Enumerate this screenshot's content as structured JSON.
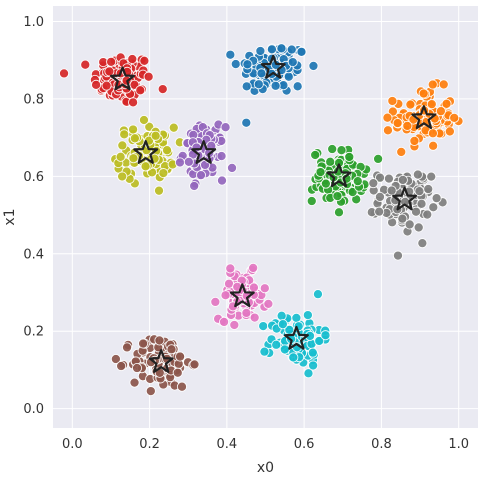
{
  "chart_data": {
    "type": "scatter",
    "title": "",
    "xlabel": "x0",
    "ylabel": "x1",
    "xlim": [
      -0.05,
      1.05
    ],
    "ylim": [
      -0.05,
      1.04
    ],
    "xticks": [
      "0.0",
      "0.2",
      "0.4",
      "0.6",
      "0.8",
      "1.0"
    ],
    "yticks": [
      "0.0",
      "0.2",
      "0.4",
      "0.6",
      "0.8",
      "1.0"
    ],
    "grid": true,
    "background": "#eaeaf2",
    "grid_color": "#ffffff",
    "point_size": "small circles with white edge",
    "points_per_cluster_approx": 100,
    "clusters": [
      {
        "center": [
          0.13,
          0.85
        ],
        "spread": [
          0.05,
          0.045
        ],
        "color": "#d62728"
      },
      {
        "center": [
          0.52,
          0.88
        ],
        "spread": [
          0.06,
          0.045
        ],
        "color": "#1f77b4"
      },
      {
        "center": [
          0.91,
          0.75
        ],
        "spread": [
          0.05,
          0.05
        ],
        "color": "#ff7f0e"
      },
      {
        "center": [
          0.19,
          0.66
        ],
        "spread": [
          0.05,
          0.045
        ],
        "color": "#bcbd22"
      },
      {
        "center": [
          0.34,
          0.66
        ],
        "spread": [
          0.035,
          0.045
        ],
        "color": "#9467bd"
      },
      {
        "center": [
          0.69,
          0.6
        ],
        "spread": [
          0.045,
          0.045
        ],
        "color": "#2ca02c"
      },
      {
        "center": [
          0.86,
          0.54
        ],
        "spread": [
          0.045,
          0.05
        ],
        "color": "#7f7f7f"
      },
      {
        "center": [
          0.44,
          0.29
        ],
        "spread": [
          0.04,
          0.04
        ],
        "color": "#e377c2"
      },
      {
        "center": [
          0.58,
          0.18
        ],
        "spread": [
          0.045,
          0.045
        ],
        "color": "#17becf"
      },
      {
        "center": [
          0.23,
          0.12
        ],
        "spread": [
          0.05,
          0.045
        ],
        "color": "#8c564b"
      }
    ],
    "centers_marker": "star",
    "centers_marker_color": "#222222"
  }
}
